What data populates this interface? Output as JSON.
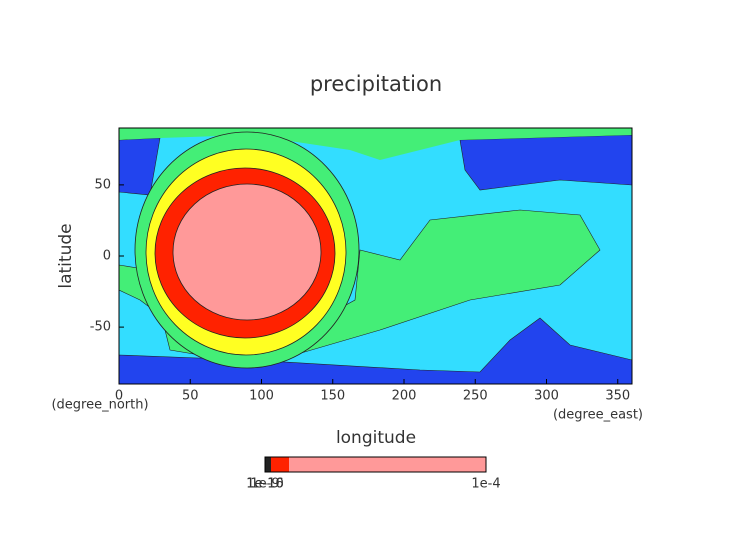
{
  "chart_data": {
    "type": "contour",
    "title": "precipitation",
    "x_label": "longitude",
    "y_label": "latitude",
    "x_units": "(degree_east)",
    "y_units": "(degree_north)",
    "xlim": [
      0,
      360
    ],
    "ylim": [
      -90,
      90
    ],
    "xticks": [
      0,
      50,
      100,
      150,
      200,
      250,
      300,
      350
    ],
    "yticks": [
      -50,
      0,
      50
    ],
    "colorbar_ticks": [
      {
        "value": 1e-16,
        "label": "1e-16"
      },
      {
        "value": 1e-10,
        "label": "1e-10"
      },
      {
        "value": 1e-09,
        "label": "1e-9"
      },
      {
        "value": 0.0001,
        "label": "1e-4"
      }
    ],
    "colorbar_lim": [
      0,
      0.0001
    ]
  }
}
